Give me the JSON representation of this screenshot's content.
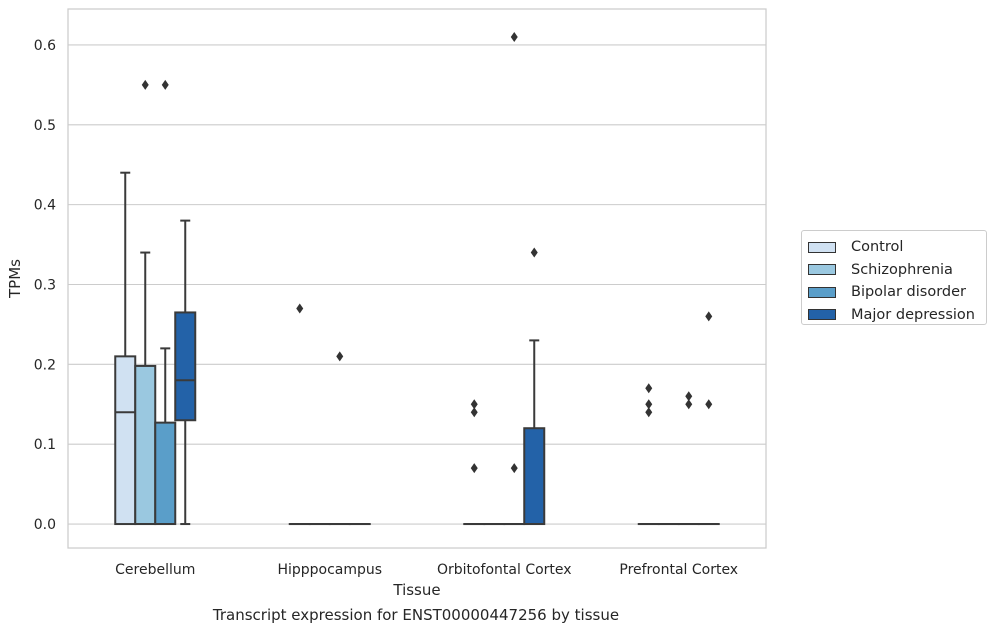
{
  "chart_data": {
    "type": "box",
    "caption": "Transcript expression for ENST00000447256 by tissue",
    "xlabel": "Tissue",
    "ylabel": "TPMs",
    "ylim": [
      -0.03,
      0.645
    ],
    "yticks": [
      0.0,
      0.1,
      0.2,
      0.3,
      0.4,
      0.5,
      0.6
    ],
    "ytick_labels": [
      "0.0",
      "0.1",
      "0.2",
      "0.3",
      "0.4",
      "0.5",
      "0.6"
    ],
    "categories": [
      "Cerebellum",
      "Hipppocampus",
      "Orbitofontal Cortex",
      "Prefrontal Cortex"
    ],
    "grid": "horizontal",
    "legend_position": "right",
    "series": [
      {
        "name": "Control",
        "color": "#d0e1f2",
        "boxes": [
          {
            "q1": 0.0,
            "median": 0.14,
            "q3": 0.21,
            "whisker_low": 0.0,
            "whisker_high": 0.44,
            "outliers": []
          },
          {
            "q1": 0.0,
            "median": 0.0,
            "q3": 0.0,
            "whisker_low": 0.0,
            "whisker_high": 0.0,
            "outliers": [
              0.27
            ]
          },
          {
            "q1": 0.0,
            "median": 0.0,
            "q3": 0.0,
            "whisker_low": 0.0,
            "whisker_high": 0.0,
            "outliers": [
              0.07,
              0.14,
              0.15
            ]
          },
          {
            "q1": 0.0,
            "median": 0.0,
            "q3": 0.0,
            "whisker_low": 0.0,
            "whisker_high": 0.0,
            "outliers": [
              0.14,
              0.15,
              0.17
            ]
          }
        ]
      },
      {
        "name": "Schizophrenia",
        "color": "#9ac8e0",
        "boxes": [
          {
            "q1": 0.0,
            "median": 0.0,
            "q3": 0.198,
            "whisker_low": 0.0,
            "whisker_high": 0.34,
            "outliers": [
              0.55
            ]
          },
          {
            "q1": 0.0,
            "median": 0.0,
            "q3": 0.0,
            "whisker_low": 0.0,
            "whisker_high": 0.0,
            "outliers": []
          },
          {
            "q1": 0.0,
            "median": 0.0,
            "q3": 0.0,
            "whisker_low": 0.0,
            "whisker_high": 0.0,
            "outliers": []
          },
          {
            "q1": 0.0,
            "median": 0.0,
            "q3": 0.0,
            "whisker_low": 0.0,
            "whisker_high": 0.0,
            "outliers": []
          }
        ]
      },
      {
        "name": "Bipolar disorder",
        "color": "#5a9ec9",
        "boxes": [
          {
            "q1": 0.0,
            "median": 0.0,
            "q3": 0.127,
            "whisker_low": 0.0,
            "whisker_high": 0.22,
            "outliers": [
              0.55
            ]
          },
          {
            "q1": 0.0,
            "median": 0.0,
            "q3": 0.0,
            "whisker_low": 0.0,
            "whisker_high": 0.0,
            "outliers": [
              0.21
            ]
          },
          {
            "q1": 0.0,
            "median": 0.0,
            "q3": 0.0,
            "whisker_low": 0.0,
            "whisker_high": 0.0,
            "outliers": [
              0.07,
              0.61
            ]
          },
          {
            "q1": 0.0,
            "median": 0.0,
            "q3": 0.0,
            "whisker_low": 0.0,
            "whisker_high": 0.0,
            "outliers": [
              0.15,
              0.16
            ]
          }
        ]
      },
      {
        "name": "Major depression",
        "color": "#2362a8",
        "boxes": [
          {
            "q1": 0.13,
            "median": 0.18,
            "q3": 0.265,
            "whisker_low": 0.0,
            "whisker_high": 0.38,
            "outliers": []
          },
          {
            "q1": 0.0,
            "median": 0.0,
            "q3": 0.0,
            "whisker_low": 0.0,
            "whisker_high": 0.0,
            "outliers": []
          },
          {
            "q1": 0.0,
            "median": 0.0,
            "q3": 0.12,
            "whisker_low": 0.0,
            "whisker_high": 0.23,
            "outliers": [
              0.34
            ]
          },
          {
            "q1": 0.0,
            "median": 0.0,
            "q3": 0.0,
            "whisker_low": 0.0,
            "whisker_high": 0.0,
            "outliers": [
              0.15,
              0.26
            ]
          }
        ]
      }
    ]
  }
}
